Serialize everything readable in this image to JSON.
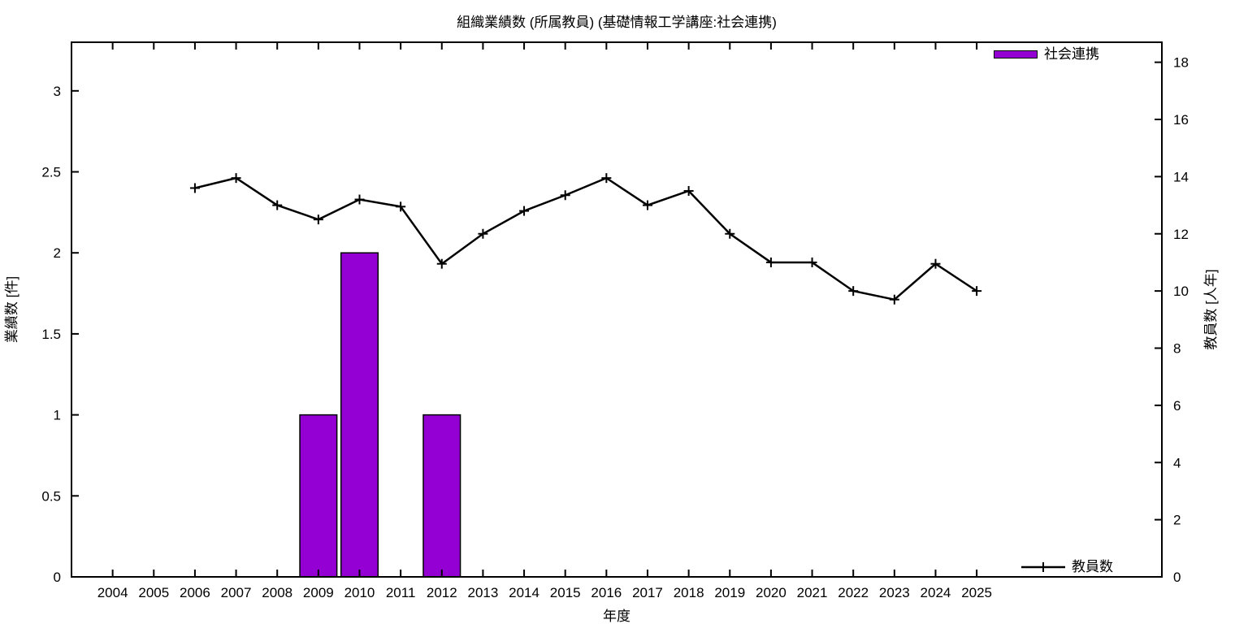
{
  "page": {
    "background": "#ffffff"
  },
  "chart_data": {
    "type": "bar+line",
    "title": "組織業績数 (所属教員) (基礎情報工学講座:社会連携)",
    "xlabel": "年度",
    "ylabel_left": "業績数 [件]",
    "ylabel_right": "教員数 [人年]",
    "grid": false,
    "x_range": [
      2003,
      2029.5
    ],
    "x_ticks": [
      2004,
      2005,
      2006,
      2007,
      2008,
      2009,
      2010,
      2011,
      2012,
      2013,
      2014,
      2015,
      2016,
      2017,
      2018,
      2019,
      2020,
      2021,
      2022,
      2023,
      2024,
      2025
    ],
    "y_left": {
      "range": [
        0,
        3.3
      ],
      "ticks": [
        0,
        0.5,
        1,
        1.5,
        2,
        2.5,
        3
      ]
    },
    "y_right": {
      "range": [
        0,
        18.7
      ],
      "ticks": [
        0,
        2,
        4,
        6,
        8,
        10,
        12,
        14,
        16,
        18
      ]
    },
    "series": [
      {
        "name": "社会連携",
        "type": "bar",
        "axis": "left",
        "color": "#9400d3",
        "border_color": "#000000",
        "bar_width_years": 0.9,
        "points": [
          {
            "x": 2009,
            "y": 1
          },
          {
            "x": 2010,
            "y": 2
          },
          {
            "x": 2012,
            "y": 1
          }
        ]
      },
      {
        "name": "教員数",
        "type": "line",
        "axis": "right",
        "color": "#000000",
        "marker": "plus",
        "x": [
          2006,
          2007,
          2008,
          2009,
          2010,
          2011,
          2012,
          2013,
          2014,
          2015,
          2016,
          2017,
          2018,
          2019,
          2020,
          2021,
          2022,
          2023,
          2024,
          2025
        ],
        "y": [
          13.6,
          13.95,
          13.0,
          12.5,
          13.2,
          12.95,
          10.95,
          12.0,
          12.8,
          13.35,
          13.95,
          13.0,
          13.5,
          12.0,
          11.0,
          11.0,
          10.0,
          9.7,
          10.95,
          10.0
        ]
      }
    ],
    "legend": [
      {
        "label": "社会連携",
        "swatch": "bar",
        "position": "top-right"
      },
      {
        "label": "教員数",
        "swatch": "line",
        "position": "bottom-right"
      }
    ]
  }
}
